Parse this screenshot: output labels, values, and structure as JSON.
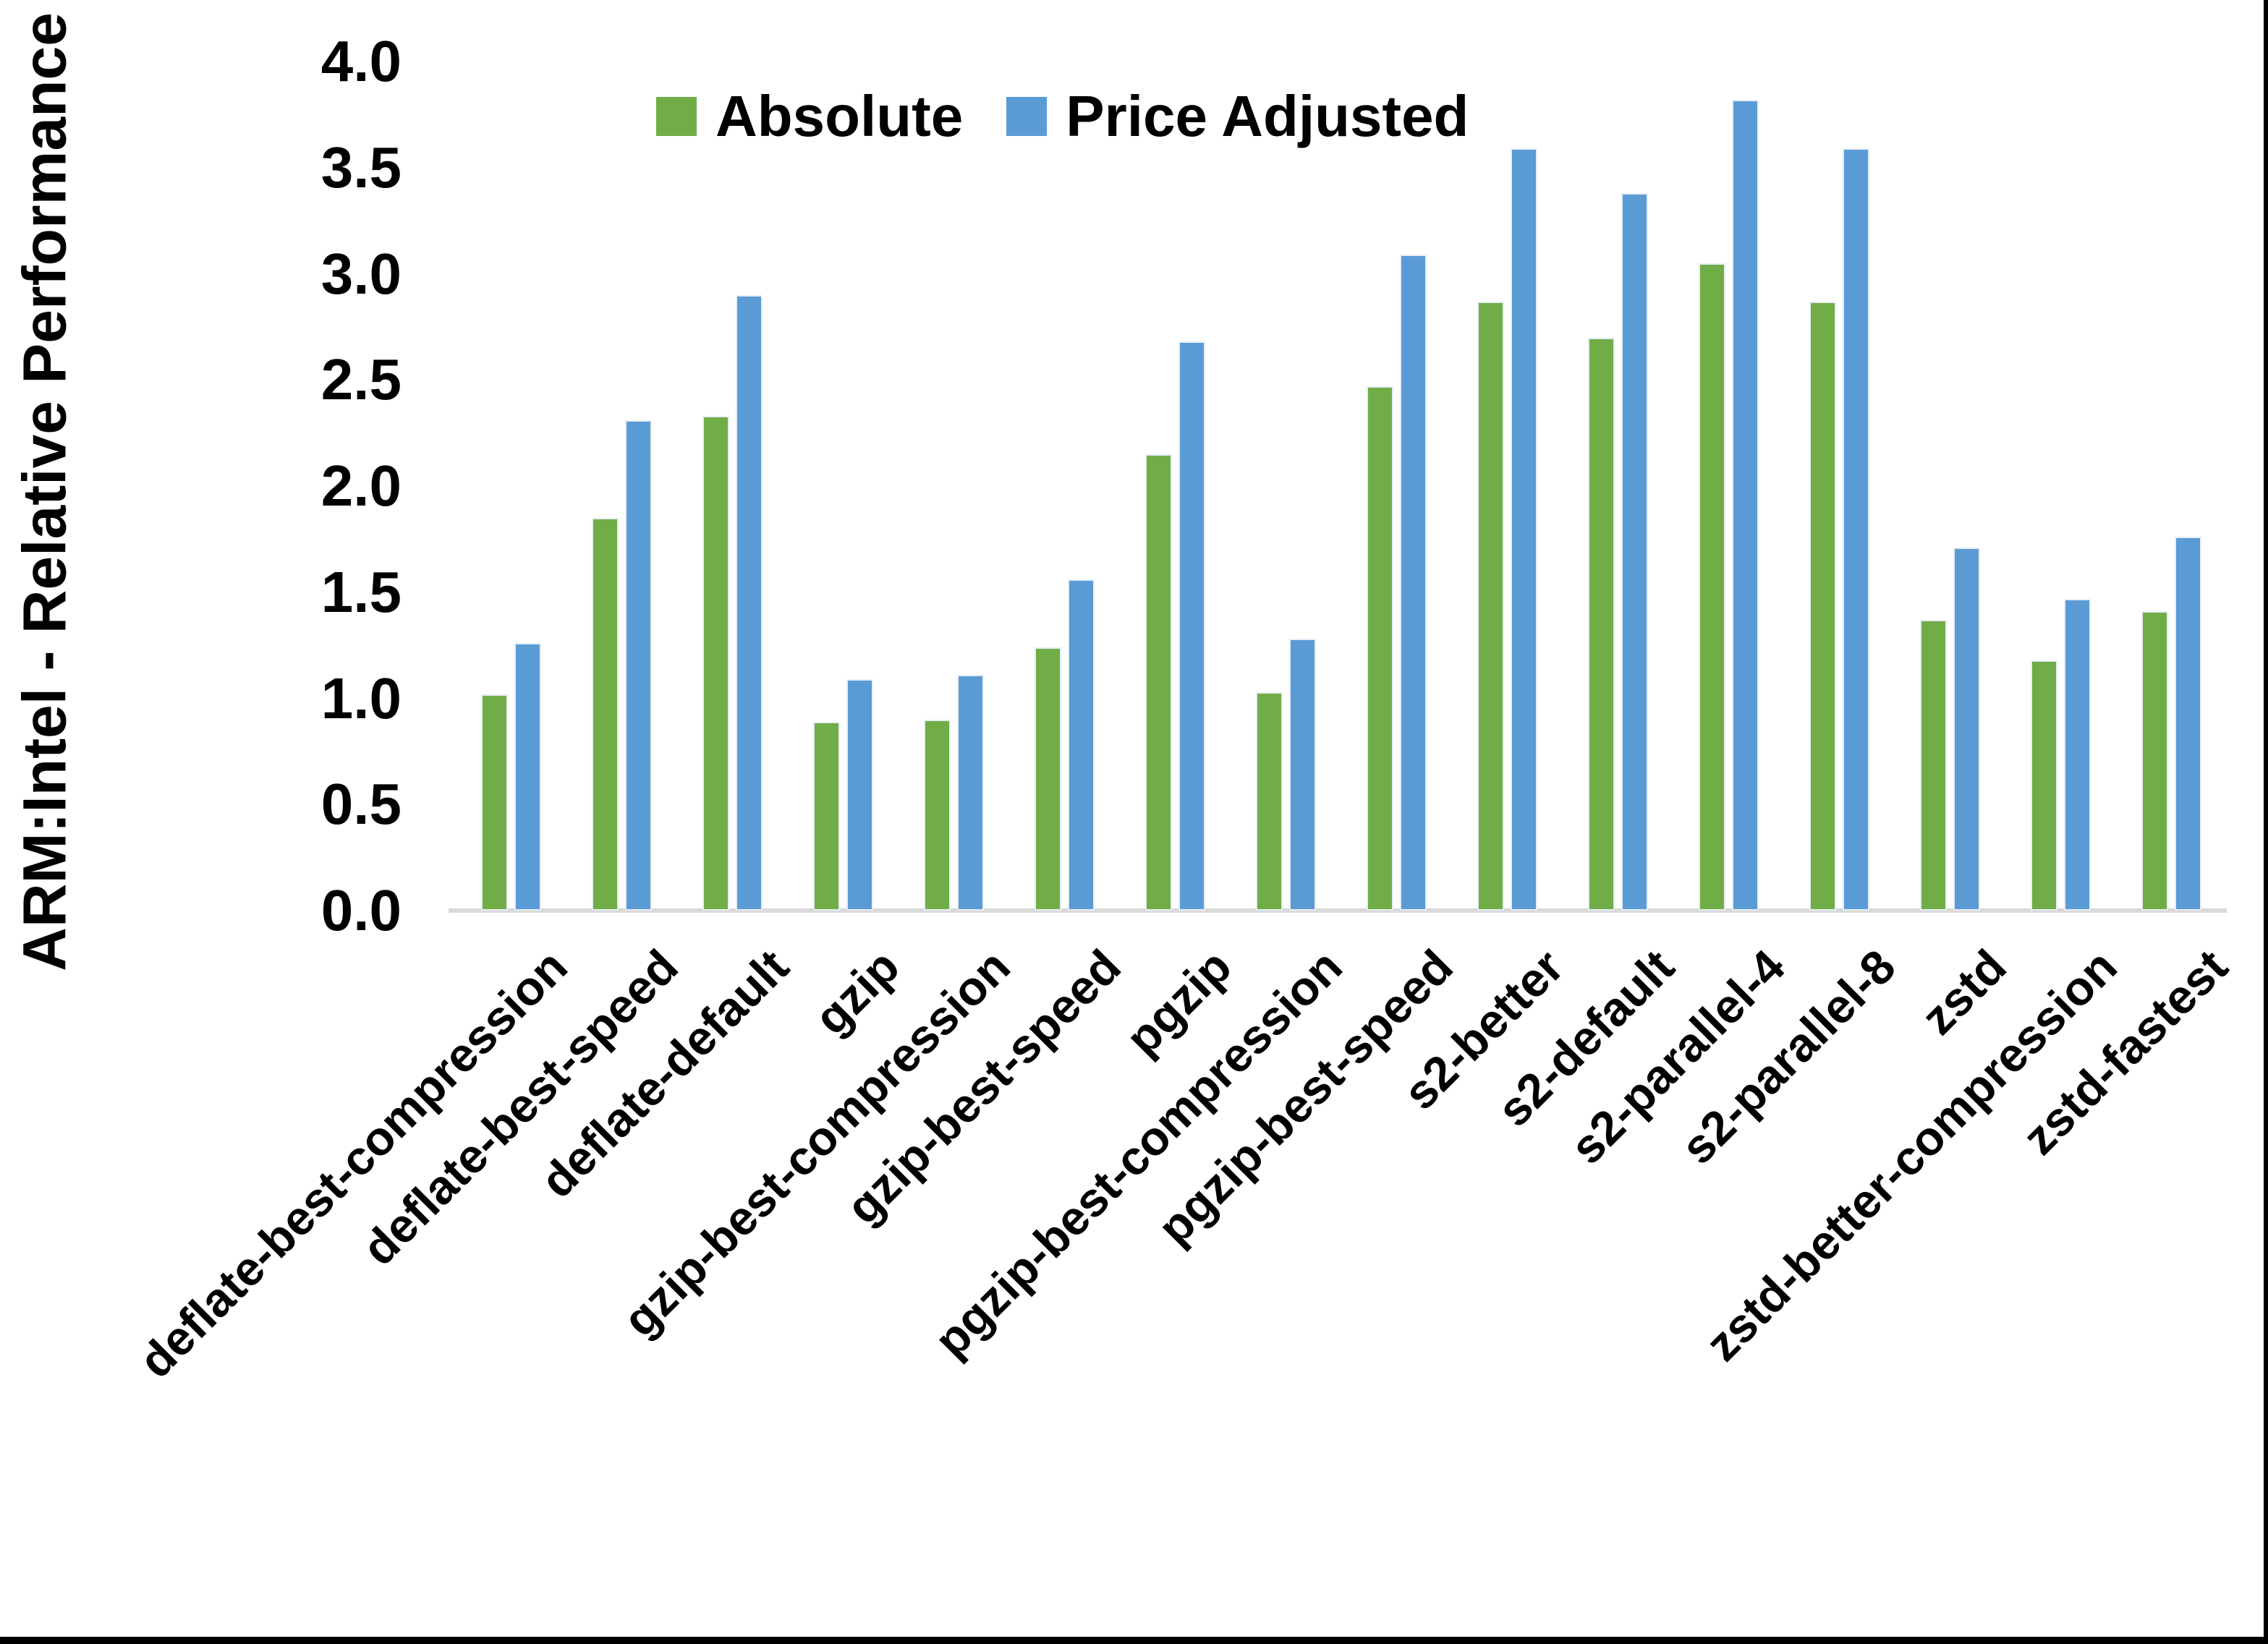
{
  "chart_data": {
    "type": "bar",
    "title": "",
    "ylabel": "ARM:Intel - Relative Performance",
    "xlabel": "",
    "categories": [
      "deflate-best-compression",
      "deflate-best-speed",
      "deflate-default",
      "gzip",
      "gzip-best-compression",
      "gzip-best-speed",
      "pgzip",
      "pgzip-best-compression",
      "pgzip-best-speed",
      "s2-better",
      "s2-default",
      "s2-parallel-4",
      "s2-parallel-8",
      "zstd",
      "zstd-better-compression",
      "zstd-fastest"
    ],
    "series": [
      {
        "name": "Absolute",
        "color": "#70AD47",
        "values": [
          1.02,
          1.85,
          2.33,
          0.89,
          0.9,
          1.24,
          2.15,
          1.03,
          2.47,
          2.87,
          2.7,
          3.05,
          2.87,
          1.37,
          1.18,
          1.41
        ]
      },
      {
        "name": "Price Adjusted",
        "color": "#5B9BD5",
        "values": [
          1.26,
          2.31,
          2.9,
          1.09,
          1.11,
          1.56,
          2.68,
          1.28,
          3.09,
          3.59,
          3.38,
          3.82,
          3.59,
          1.71,
          1.47,
          1.76
        ]
      }
    ],
    "ylim": [
      0,
      4
    ],
    "ytick_step": 0.5,
    "yticks": [
      "0.0",
      "0.5",
      "1.0",
      "1.5",
      "2.0",
      "2.5",
      "3.0",
      "3.5",
      "4.0"
    ],
    "grid": false,
    "legend_position": "top-center",
    "axis_color": "#D9D9D9",
    "bar_edge_color": "#E7EEF7"
  }
}
